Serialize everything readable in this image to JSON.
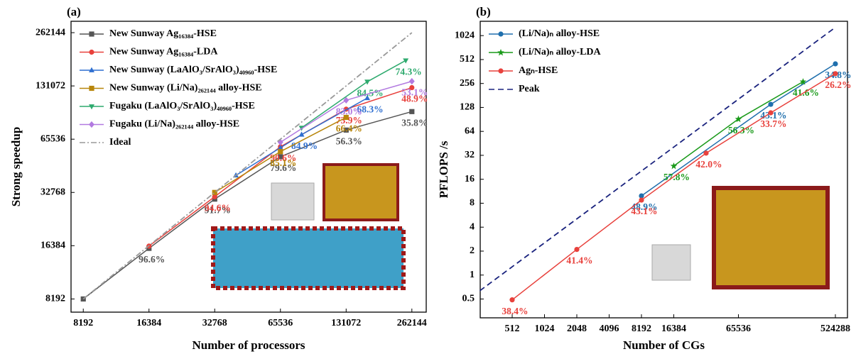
{
  "chart_data": [
    {
      "type": "line",
      "title": "(a)",
      "xlabel": "Number of processors",
      "ylabel": "Strong speedup",
      "xscale": "log2",
      "yscale": "log2",
      "xlim": [
        7200,
        305000
      ],
      "ylim": [
        6900,
        304000
      ],
      "xticks": [
        8192,
        16384,
        32768,
        65536,
        131072,
        262144
      ],
      "yticks": [
        8192,
        16384,
        32768,
        65536,
        131072,
        262144
      ],
      "legend": "upper left",
      "series": [
        {
          "name": "New Sunway Ag₁₆₃₈₄-HSE",
          "color": "#555555",
          "marker": "square",
          "x": [
            8192,
            16384,
            32768,
            65536,
            131072,
            262144
          ],
          "values": [
            8192,
            15827,
            30048,
            52167,
            73794,
            93848
          ],
          "efficiency_labels": [
            null,
            "96.6%",
            "91.7%",
            "79.6%",
            "56.3%",
            "35.8%"
          ]
        },
        {
          "name": "New Sunway Ag₁₆₃₈₄-LDA",
          "color": "#e8413c",
          "marker": "circle",
          "x": [
            16384,
            32768,
            65536,
            131072,
            262144
          ],
          "values": [
            16300,
            30999,
            59376,
            96862,
            128188
          ],
          "efficiency_labels": [
            null,
            "94.6%",
            "90.6%",
            "73.9%",
            "48.9%"
          ]
        },
        {
          "name": "New Sunway (LaAlO₃/SrAlO₃)₄₀₉₆₀-HSE",
          "color": "#2f6fd0",
          "marker": "triangle",
          "x": [
            40960,
            65536,
            81920,
            163840
          ],
          "values": [
            40900,
            58650,
            69551,
            111903
          ],
          "efficiency_labels": [
            null,
            null,
            "84.9%",
            "68.3%"
          ]
        },
        {
          "name": "New Sunway (Li/Na)₂₆₂₁₄₄ alloy-HSE",
          "color": "#b8860b",
          "marker": "square",
          "x": [
            32768,
            65536,
            131072
          ],
          "values": [
            32768,
            55771,
            87032
          ],
          "efficiency_labels": [
            null,
            "85.1%",
            "66.4%"
          ]
        },
        {
          "name": "Fugaku (LaAlO₃/SrAlO₃)₄₀₉₆₀-HSE",
          "color": "#2eaa6e",
          "marker": "triangle-down",
          "x": [
            81920,
            163840,
            245760
          ],
          "values": [
            76000,
            138445,
            182600
          ],
          "efficiency_labels": [
            null,
            "84.5%",
            "74.3%"
          ]
        },
        {
          "name": "Fugaku (Li/Na)₂₆₂₁₄₄ alloy-HSE",
          "color": "#b27ae0",
          "marker": "diamond",
          "x": [
            65536,
            131072,
            262144
          ],
          "values": [
            63000,
            108790,
            139198
          ],
          "efficiency_labels": [
            null,
            "83.0%",
            "53.1%"
          ]
        },
        {
          "name": "Ideal",
          "color": "#999999",
          "marker": "none",
          "dash": "dashdot",
          "x": [
            8192,
            262144
          ],
          "values": [
            8192,
            262144
          ]
        }
      ]
    },
    {
      "type": "line",
      "title": "(b)",
      "xlabel": "Number of CGs",
      "ylabel": "PFLOPS /s",
      "xscale": "log2",
      "yscale": "log2",
      "xlim": [
        258,
        679500
      ],
      "ylim": [
        0.29,
        1550
      ],
      "xticks": [
        512,
        1024,
        2048,
        4096,
        8192,
        16384,
        65536,
        524288
      ],
      "yticks": [
        0.5,
        1,
        2,
        4,
        8,
        16,
        32,
        64,
        128,
        256,
        512,
        1024
      ],
      "legend": "upper left",
      "series": [
        {
          "name": "(Li/Na)ₙ alloy-HSE",
          "color": "#1f6fad",
          "marker": "circle",
          "x": [
            8192,
            131072,
            524288
          ],
          "values": [
            9.9,
            140,
            452
          ],
          "efficiency_labels": [
            "48.9%",
            "43.1%",
            "34.8%"
          ]
        },
        {
          "name": "(Li/Na)ₙ alloy-LDA",
          "color": "#1a9a1a",
          "marker": "star",
          "x": [
            16384,
            65536,
            262144
          ],
          "values": [
            23.5,
            91.5,
            270
          ],
          "efficiency_labels": [
            "57.8%",
            "56.3%",
            "41.6%"
          ]
        },
        {
          "name": "Agₙ-HSE",
          "color": "#e8413c",
          "marker": "circle",
          "x": [
            512,
            2048,
            8192,
            32768,
            131072,
            524288
          ],
          "values": [
            0.488,
            2.1,
            8.76,
            34.1,
            109.6,
            340.6
          ],
          "efficiency_labels": [
            "38.4%",
            "41.4%",
            "43.1%",
            "42.0%",
            "33.7%",
            "26.2%"
          ]
        },
        {
          "name": "Peak",
          "color": "#1a237e",
          "marker": "none",
          "dash": "dash",
          "x": [
            256,
            524288
          ],
          "values": [
            0.635,
            1300
          ]
        }
      ]
    }
  ]
}
